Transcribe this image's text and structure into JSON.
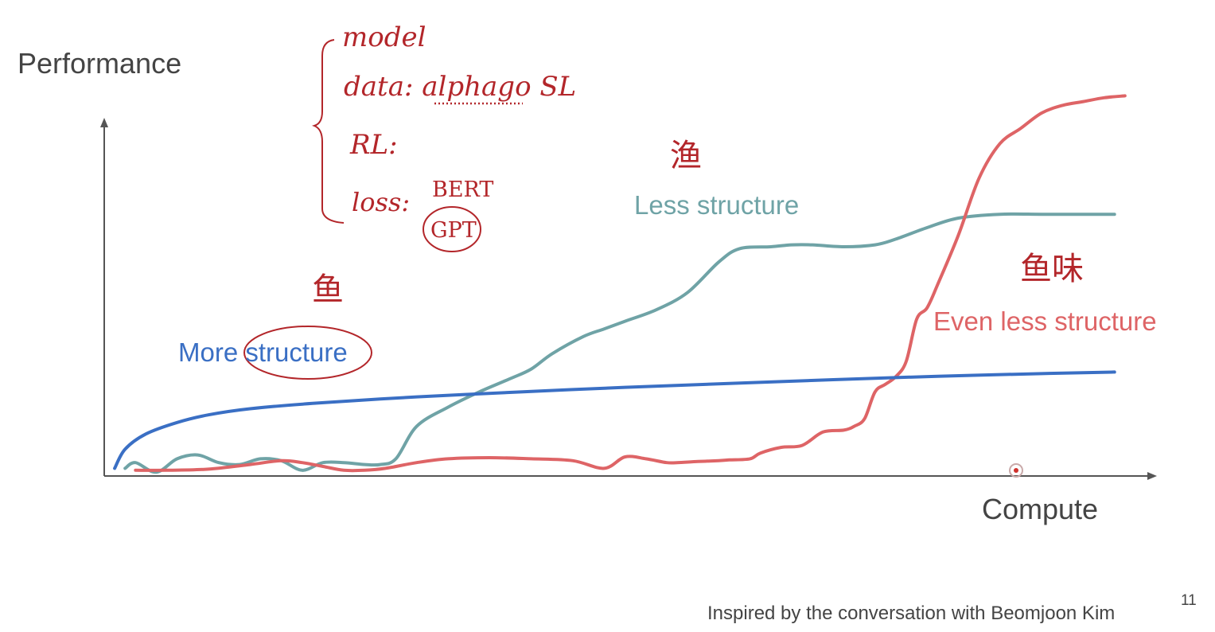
{
  "slide": {
    "footer": "Inspired by the conversation with Beomjoon Kim",
    "page_number": "11"
  },
  "annotations": {
    "model": "model",
    "data": "data: alphago SL",
    "rl": "RL:",
    "loss": "loss:",
    "bert": "BERT",
    "gpt": "GPT",
    "char_less": "渔",
    "char_more": "鱼",
    "char_even": "鱼味",
    "color": "#b3262a"
  },
  "chart_data": {
    "type": "line",
    "xlabel": "Compute",
    "ylabel": "Performance",
    "xlim": [
      0,
      100
    ],
    "ylim": [
      0,
      100
    ],
    "grid": false,
    "legend": "inline labels",
    "axes_color": "#555555",
    "series": [
      {
        "name": "More structure",
        "color": "#3a6fc4",
        "label_at": [
          7,
          33
        ],
        "x": [
          1,
          2,
          4,
          7,
          10,
          14,
          20,
          30,
          40,
          50,
          60,
          70,
          80,
          90,
          97
        ],
        "y": [
          2,
          7,
          11,
          14,
          16,
          17.6,
          19,
          20.7,
          22,
          23.2,
          24.2,
          25.2,
          26.1,
          26.8,
          27.2
        ]
      },
      {
        "name": "Less structure",
        "color": "#6fa3a6",
        "label_at": [
          52,
          72
        ],
        "x": [
          2,
          3,
          5,
          7,
          9,
          11,
          13,
          15,
          17,
          19,
          21,
          23,
          25,
          26.5,
          28,
          30,
          33,
          36,
          39,
          41,
          43,
          46,
          48,
          50,
          53,
          56,
          59,
          61,
          64,
          66,
          68,
          71,
          74,
          76,
          79,
          82,
          86,
          90,
          94,
          97
        ],
        "y": [
          2,
          3.5,
          1,
          4.5,
          5.5,
          3.5,
          3,
          4.5,
          4,
          1.5,
          3.5,
          3.5,
          3,
          3,
          4.5,
          13,
          18,
          22,
          25.5,
          28,
          32,
          36.5,
          38.5,
          40.5,
          43.5,
          48,
          56,
          59.5,
          60,
          60.5,
          60.5,
          60,
          60.5,
          62,
          65,
          67.5,
          68.5,
          68.5,
          68.5,
          68.5
        ]
      },
      {
        "name": "Even less structure",
        "color": "#de6466",
        "label_at": [
          80,
          40
        ],
        "x": [
          3,
          6,
          10,
          14,
          17,
          19,
          21,
          23,
          25,
          27,
          30,
          33,
          37,
          41,
          45,
          48,
          50,
          52,
          54,
          55,
          57,
          59,
          60,
          62,
          63,
          65,
          67,
          69,
          71,
          72,
          73,
          74,
          75,
          76,
          77,
          78,
          79,
          80,
          82,
          84,
          86,
          88,
          90,
          92,
          94,
          96,
          98
        ],
        "y": [
          1.5,
          1.5,
          1.8,
          3,
          4,
          3.5,
          2.5,
          1.5,
          1.5,
          2,
          3.5,
          4.5,
          4.8,
          4.5,
          4,
          2,
          5,
          4.5,
          3.5,
          3.5,
          3.8,
          4,
          4.2,
          4.5,
          6,
          7.5,
          8,
          11.5,
          12,
          13,
          15,
          22,
          24,
          26,
          30,
          41,
          44,
          50,
          63,
          78,
          87,
          91,
          95,
          97,
          98,
          99,
          99.5
        ]
      }
    ]
  }
}
